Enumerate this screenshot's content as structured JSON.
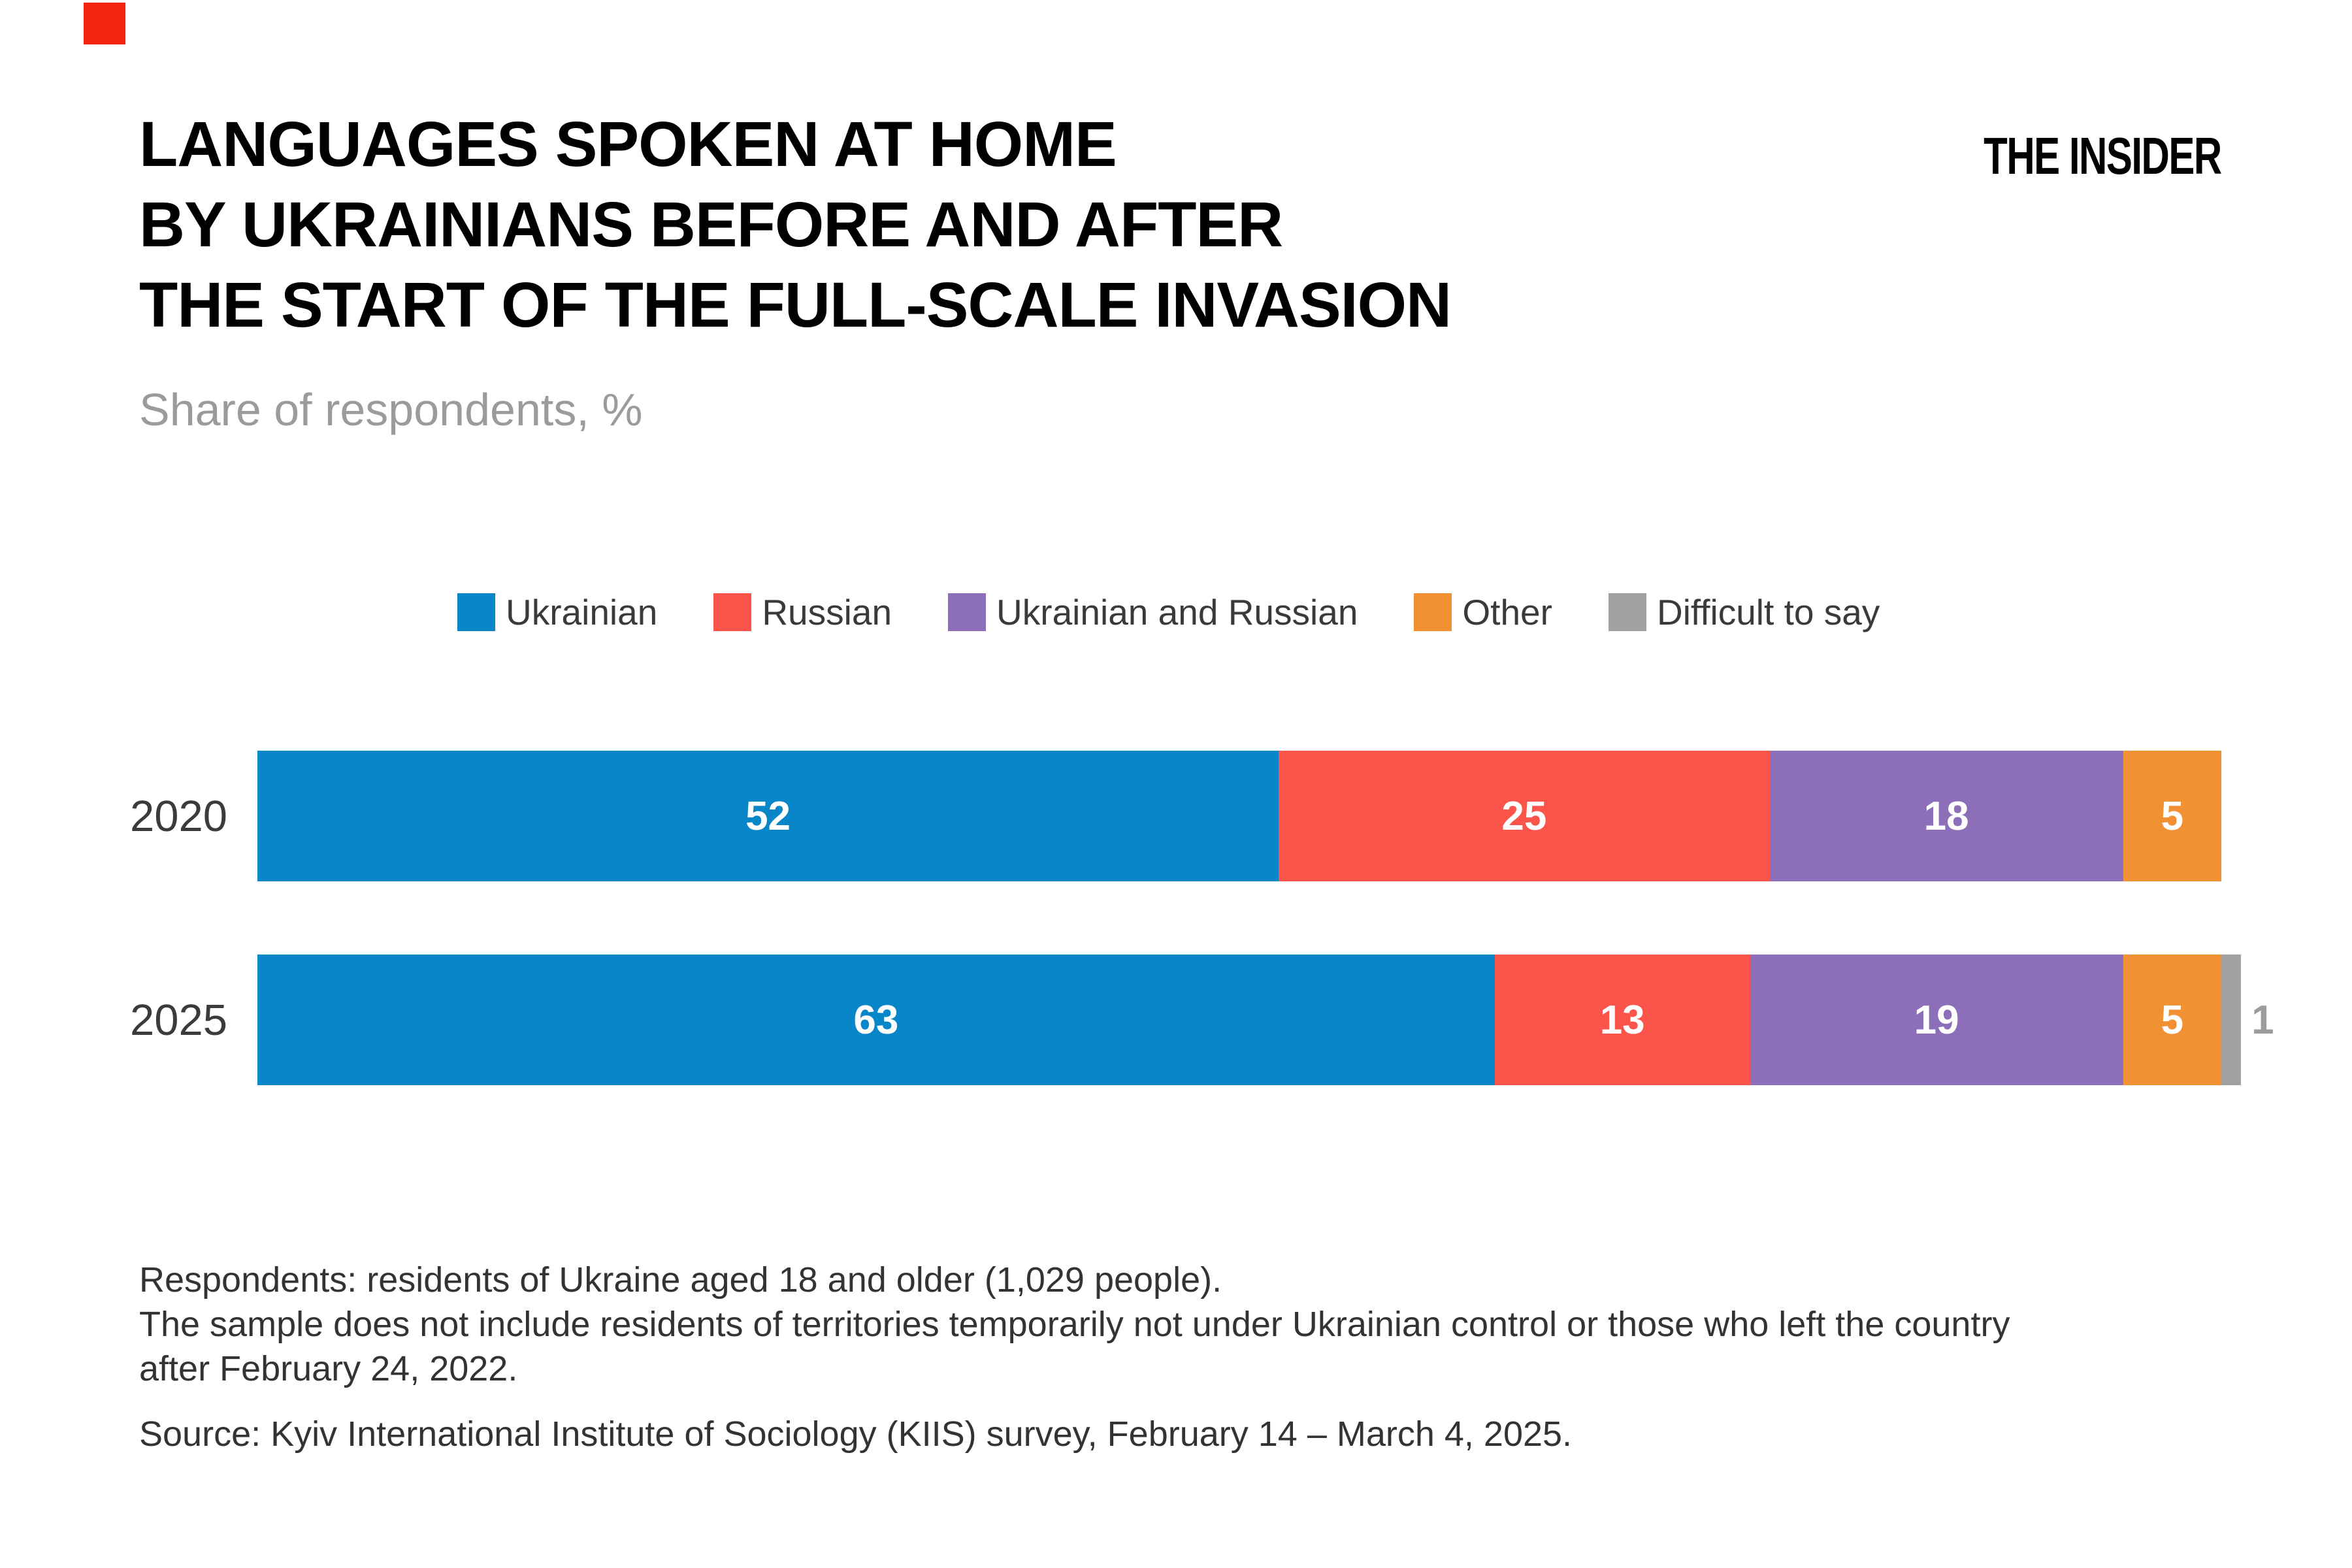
{
  "brand": {
    "logo": "THE INSIDER",
    "accent_square_color": "#F2240F"
  },
  "header": {
    "title_lines": [
      "LANGUAGES SPOKEN AT HOME",
      "BY UKRAINIANS BEFORE AND AFTER",
      "THE START OF THE FULL-SCALE INVASION"
    ],
    "subtitle": "Share of respondents, %"
  },
  "chart_data": {
    "type": "bar",
    "orientation": "horizontal_stacked",
    "unit": "% of respondents",
    "axis_range": [
      0,
      100
    ],
    "gridlines": false,
    "legend_position": "top",
    "categories": [
      "2020",
      "2025"
    ],
    "series": [
      {
        "name": "Ukrainian",
        "color": "#0986C7",
        "values": [
          52,
          63
        ]
      },
      {
        "name": "Russian",
        "color": "#FA544B",
        "values": [
          25,
          13
        ]
      },
      {
        "name": "Ukrainian and Russian",
        "color": "#8C6FB8",
        "values": [
          18,
          19
        ]
      },
      {
        "name": "Other",
        "color": "#F29133",
        "values": [
          5,
          5
        ]
      },
      {
        "name": "Difficult to say",
        "color": "#A1A1A1",
        "values": [
          0,
          1
        ]
      }
    ],
    "value_label_style": "inside segments, white bold; values below 2 shown outside bar in gray",
    "outside_label_color": "#9C9C9C"
  },
  "notes": {
    "lines": [
      "Respondents: residents of Ukraine aged 18 and older (1,029 people).",
      "The sample does not include residents of territories temporarily not under Ukrainian control or those who left the country",
      "after February 24, 2022."
    ],
    "source": "Source: Kyiv International Institute of Sociology (KIIS) survey, February 14 – March 4, 2025."
  }
}
